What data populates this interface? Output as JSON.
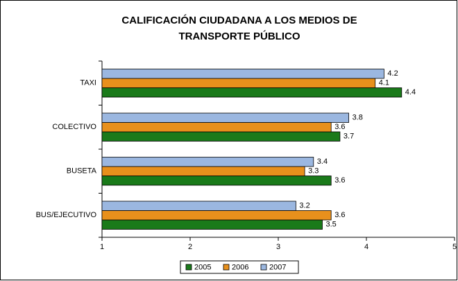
{
  "chart_data": {
    "type": "hbar",
    "title": [
      "CALIFICACIÓN CIUDADANA A LOS MEDIOS DE",
      "TRANSPORTE PÚBLICO"
    ],
    "categories": [
      "TAXI",
      "COLECTIVO",
      "BUSETA",
      "BUS/EJECUTIVO"
    ],
    "series": [
      {
        "name": "2005",
        "color": "#1a7a1a",
        "values": [
          4.4,
          3.7,
          3.6,
          3.5
        ]
      },
      {
        "name": "2006",
        "color": "#e8901c",
        "values": [
          4.1,
          3.6,
          3.3,
          3.6
        ]
      },
      {
        "name": "2007",
        "color": "#9bb7e0",
        "values": [
          4.2,
          3.8,
          3.4,
          3.2
        ]
      }
    ],
    "xlim": [
      1,
      5
    ],
    "xticks": [
      1,
      2,
      3,
      4,
      5
    ],
    "legend": "bottom"
  }
}
